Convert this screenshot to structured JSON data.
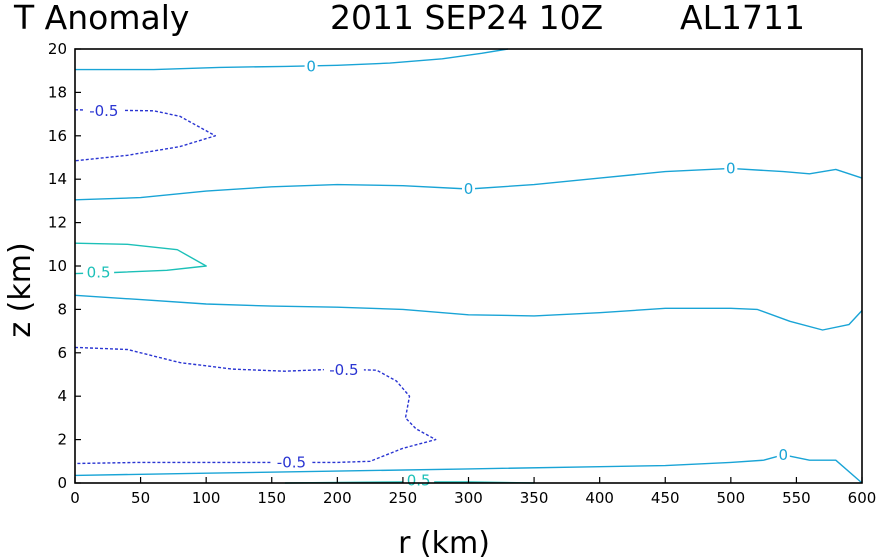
{
  "chart_data": {
    "type": "contour",
    "title": "T Anomaly",
    "timestamp": "2011 SEP24 10Z",
    "storm_id": "AL1711",
    "xlabel": "r (km)",
    "ylabel": "z (km)",
    "xlim": [
      0,
      600
    ],
    "ylim": [
      0,
      20
    ],
    "xticks": [
      0,
      50,
      100,
      150,
      200,
      250,
      300,
      350,
      400,
      450,
      500,
      550,
      600
    ],
    "yticks": [
      0,
      2,
      4,
      6,
      8,
      10,
      12,
      14,
      16,
      18,
      20
    ],
    "colors": {
      "zero": "#19a4d6",
      "neg05": "#2a35d2",
      "pos05": "#1cc0b8"
    },
    "contours": [
      {
        "id": "zero-top",
        "level": "0",
        "style": "zero",
        "points": [
          [
            0,
            19.05
          ],
          [
            60,
            19.05
          ],
          [
            110,
            19.15
          ],
          [
            160,
            19.2
          ],
          [
            200,
            19.25
          ],
          [
            240,
            19.35
          ],
          [
            280,
            19.55
          ],
          [
            310,
            19.8
          ],
          [
            330,
            20.0
          ]
        ],
        "labels": [
          {
            "text": "0",
            "x": 180,
            "y": 19.2
          }
        ]
      },
      {
        "id": "neg-16",
        "level": "-0.5",
        "style": "neg05",
        "points": [
          [
            0,
            17.2
          ],
          [
            60,
            17.15
          ],
          [
            80,
            16.9
          ],
          [
            107,
            16.0
          ],
          [
            80,
            15.5
          ],
          [
            40,
            15.1
          ],
          [
            0,
            14.85
          ]
        ],
        "labels": [
          {
            "text": "-0.5",
            "x": 22,
            "y": 17.15
          }
        ]
      },
      {
        "id": "zero-14",
        "level": "0",
        "style": "zero",
        "points": [
          [
            0,
            13.05
          ],
          [
            50,
            13.15
          ],
          [
            100,
            13.45
          ],
          [
            150,
            13.65
          ],
          [
            200,
            13.75
          ],
          [
            250,
            13.7
          ],
          [
            300,
            13.55
          ],
          [
            350,
            13.75
          ],
          [
            400,
            14.05
          ],
          [
            450,
            14.35
          ],
          [
            500,
            14.5
          ],
          [
            540,
            14.35
          ],
          [
            560,
            14.25
          ],
          [
            580,
            14.45
          ],
          [
            600,
            14.05
          ]
        ],
        "labels": [
          {
            "text": "0",
            "x": 300,
            "y": 13.55
          },
          {
            "text": "0",
            "x": 500,
            "y": 14.5
          }
        ]
      },
      {
        "id": "pos-10",
        "level": "0.5",
        "style": "pos05",
        "points": [
          [
            0,
            11.05
          ],
          [
            40,
            11.0
          ],
          [
            78,
            10.75
          ],
          [
            100,
            10.0
          ],
          [
            70,
            9.8
          ],
          [
            30,
            9.7
          ],
          [
            0,
            9.65
          ]
        ],
        "labels": [
          {
            "text": "0.5",
            "x": 18,
            "y": 9.7
          }
        ]
      },
      {
        "id": "zero-8",
        "level": "0",
        "style": "zero",
        "points": [
          [
            0,
            8.65
          ],
          [
            50,
            8.45
          ],
          [
            100,
            8.25
          ],
          [
            150,
            8.15
          ],
          [
            200,
            8.1
          ],
          [
            250,
            8.0
          ],
          [
            300,
            7.75
          ],
          [
            350,
            7.7
          ],
          [
            400,
            7.85
          ],
          [
            450,
            8.05
          ],
          [
            500,
            8.05
          ],
          [
            520,
            8.0
          ],
          [
            545,
            7.45
          ],
          [
            570,
            7.05
          ],
          [
            590,
            7.3
          ],
          [
            600,
            7.95
          ]
        ],
        "labels": []
      },
      {
        "id": "neg-5",
        "level": "-0.5",
        "style": "neg05",
        "points": [
          [
            0,
            6.25
          ],
          [
            40,
            6.15
          ],
          [
            80,
            5.55
          ],
          [
            120,
            5.25
          ],
          [
            160,
            5.15
          ],
          [
            200,
            5.25
          ],
          [
            230,
            5.2
          ],
          [
            245,
            4.7
          ],
          [
            255,
            4.0
          ],
          [
            252,
            3.0
          ],
          [
            260,
            2.5
          ],
          [
            275,
            2.0
          ],
          [
            250,
            1.6
          ],
          [
            225,
            1.0
          ],
          [
            200,
            0.95
          ],
          [
            100,
            0.95
          ],
          [
            50,
            0.95
          ],
          [
            0,
            0.9
          ]
        ],
        "labels": [
          {
            "text": "-0.5",
            "x": 205,
            "y": 5.2
          },
          {
            "text": "-0.5",
            "x": 165,
            "y": 0.95
          }
        ]
      },
      {
        "id": "zero-bottom",
        "level": "0",
        "style": "zero",
        "points": [
          [
            0,
            0.35
          ],
          [
            100,
            0.45
          ],
          [
            200,
            0.55
          ],
          [
            300,
            0.65
          ],
          [
            400,
            0.75
          ],
          [
            450,
            0.8
          ],
          [
            500,
            0.95
          ],
          [
            525,
            1.05
          ],
          [
            540,
            1.3
          ],
          [
            560,
            1.05
          ],
          [
            580,
            1.05
          ],
          [
            600,
            0.0
          ]
        ],
        "labels": [
          {
            "text": "0",
            "x": 540,
            "y": 1.3
          }
        ]
      },
      {
        "id": "pos-bottom",
        "level": "0.5",
        "style": "pos05",
        "points": [
          [
            160,
            0.0
          ],
          [
            250,
            0.05
          ],
          [
            300,
            0.05
          ],
          [
            350,
            0.0
          ]
        ],
        "labels": [
          {
            "text": "0.5",
            "x": 262,
            "y": 0.12
          }
        ]
      }
    ]
  }
}
